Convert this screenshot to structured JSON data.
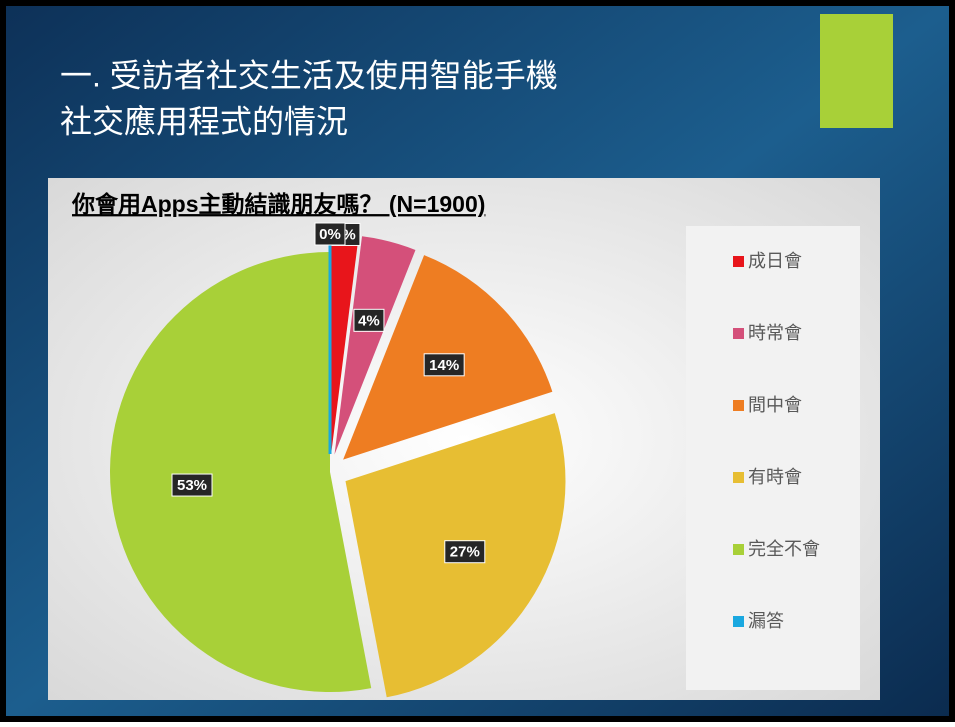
{
  "slide": {
    "title_lines": [
      "一. 受訪者社交生活及使用智能手機",
      "社交應用程式的情況"
    ]
  },
  "chart_data": {
    "type": "pie",
    "title": "你會用Apps主動結識朋友嗎？ (N=1900)",
    "categories": [
      "成日會",
      "時常會",
      "間中會",
      "有時會",
      "完全不會",
      "漏答"
    ],
    "values": [
      2,
      4,
      14,
      27,
      53,
      0
    ],
    "value_labels": [
      "2%",
      "4%",
      "14%",
      "27%",
      "53%",
      "0%"
    ],
    "colors": [
      "#e8151b",
      "#d4507a",
      "#ee7d22",
      "#e7be33",
      "#a8d038",
      "#1aa8e0"
    ],
    "legend": "right"
  }
}
